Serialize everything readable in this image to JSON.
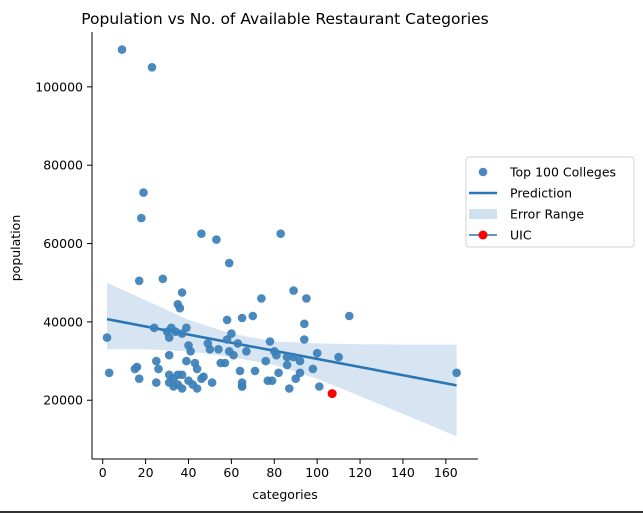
{
  "chart_data": {
    "type": "scatter",
    "title": "Population vs No. of Available Restaurant Categories",
    "xlabel": "categories",
    "ylabel": "population",
    "xlim": [
      -5,
      175
    ],
    "ylim": [
      5000,
      114000
    ],
    "xticks": [
      0,
      20,
      40,
      60,
      80,
      100,
      120,
      140,
      160
    ],
    "yticks": [
      20000,
      40000,
      60000,
      80000,
      100000
    ],
    "grid": false,
    "legend_position": "center-right",
    "legend": [
      "Top 100 Colleges",
      "Prediction",
      "Error Range",
      "UIC"
    ],
    "colors": {
      "points": "#3a7fb8",
      "line": "#2a76b4",
      "band": "#cfe0ef",
      "uic": "#ff0000"
    },
    "series": [
      {
        "name": "Top 100 Colleges",
        "points": [
          [
            9,
            109500
          ],
          [
            23,
            105000
          ],
          [
            19,
            73000
          ],
          [
            18,
            66500
          ],
          [
            46,
            62500
          ],
          [
            53,
            61000
          ],
          [
            83,
            62500
          ],
          [
            59,
            55000
          ],
          [
            17,
            50500
          ],
          [
            28,
            51000
          ],
          [
            37,
            47500
          ],
          [
            89,
            48000
          ],
          [
            95,
            46000
          ],
          [
            74,
            46000
          ],
          [
            35,
            44500
          ],
          [
            36,
            43500
          ],
          [
            115,
            41500
          ],
          [
            65,
            41000
          ],
          [
            70,
            41500
          ],
          [
            58,
            40500
          ],
          [
            94,
            39500
          ],
          [
            24,
            38500
          ],
          [
            32,
            38500
          ],
          [
            39,
            38500
          ],
          [
            30,
            37500
          ],
          [
            34,
            37500
          ],
          [
            37,
            37000
          ],
          [
            60,
            37000
          ],
          [
            2,
            36000
          ],
          [
            31,
            36000
          ],
          [
            40,
            34000
          ],
          [
            58,
            35500
          ],
          [
            63,
            34500
          ],
          [
            78,
            35000
          ],
          [
            94,
            35500
          ],
          [
            49,
            34500
          ],
          [
            54,
            33000
          ],
          [
            50,
            33000
          ],
          [
            41,
            32500
          ],
          [
            59,
            32500
          ],
          [
            61,
            31500
          ],
          [
            67,
            32500
          ],
          [
            80,
            32500
          ],
          [
            81,
            31500
          ],
          [
            86,
            31000
          ],
          [
            89,
            31000
          ],
          [
            100,
            32000
          ],
          [
            110,
            31000
          ],
          [
            31,
            31500
          ],
          [
            25,
            30000
          ],
          [
            39,
            30000
          ],
          [
            43,
            29500
          ],
          [
            55,
            29500
          ],
          [
            57,
            29500
          ],
          [
            76,
            30000
          ],
          [
            92,
            30000
          ],
          [
            86,
            29000
          ],
          [
            15,
            28000
          ],
          [
            16,
            28500
          ],
          [
            26,
            28000
          ],
          [
            44,
            28000
          ],
          [
            64,
            27500
          ],
          [
            71,
            27500
          ],
          [
            82,
            27000
          ],
          [
            92,
            27000
          ],
          [
            98,
            28000
          ],
          [
            165,
            27000
          ],
          [
            3,
            27000
          ],
          [
            31,
            26500
          ],
          [
            35,
            26500
          ],
          [
            37,
            26500
          ],
          [
            47,
            26000
          ],
          [
            17,
            25500
          ],
          [
            33,
            25500
          ],
          [
            40,
            25000
          ],
          [
            46,
            25500
          ],
          [
            51,
            24500
          ],
          [
            77,
            25000
          ],
          [
            79,
            25000
          ],
          [
            90,
            25500
          ],
          [
            25,
            24500
          ],
          [
            31,
            24500
          ],
          [
            35,
            24000
          ],
          [
            42,
            24000
          ],
          [
            33,
            23500
          ],
          [
            37,
            23000
          ],
          [
            44,
            23000
          ],
          [
            65,
            24500
          ],
          [
            65,
            23500
          ],
          [
            65,
            23500
          ],
          [
            87,
            23000
          ],
          [
            101,
            23500
          ]
        ]
      },
      {
        "name": "Prediction",
        "line": [
          [
            2,
            40700
          ],
          [
            165,
            23800
          ]
        ]
      },
      {
        "name": "Error Range",
        "band": {
          "x": [
            2,
            20,
            40,
            60,
            80,
            100,
            120,
            140,
            165
          ],
          "upper": [
            50000,
            45500,
            40500,
            37000,
            35000,
            34500,
            34300,
            34200,
            34200
          ],
          "lower": [
            33000,
            33000,
            32500,
            31000,
            29000,
            25500,
            21000,
            16500,
            10800
          ]
        }
      },
      {
        "name": "UIC",
        "points": [
          [
            107,
            21700
          ]
        ]
      }
    ]
  }
}
